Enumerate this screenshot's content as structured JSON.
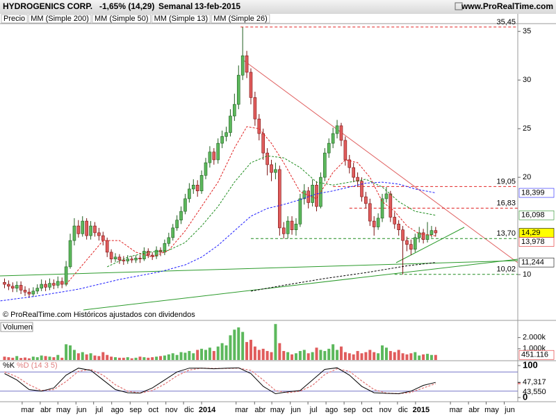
{
  "chart_data": {
    "type": "candlestick",
    "title": "HYDROGENICS CORP.",
    "change": "-1,65% (14,29)",
    "period": "Semanal",
    "date": "13-feb-2015",
    "source": "www.ProRealTime.com",
    "footnote": "© ProRealTime.com Históricos ajustados con dividendos",
    "xlim": [
      -49.1,
      77.0
    ],
    "xticks": [
      {
        "value": -43.7,
        "label": "mar"
      },
      {
        "value": -39.3,
        "label": "abr"
      },
      {
        "value": -35.0,
        "label": "may"
      },
      {
        "value": -30.6,
        "label": "jun"
      },
      {
        "value": -26.3,
        "label": "jul"
      },
      {
        "value": -21.9,
        "label": "ago"
      },
      {
        "value": -17.4,
        "label": "sep"
      },
      {
        "value": -13.1,
        "label": "oct"
      },
      {
        "value": -8.7,
        "label": "nov"
      },
      {
        "value": -4.4,
        "label": "dic"
      },
      {
        "value": 0,
        "label": "2014"
      },
      {
        "value": 8.4,
        "label": "mar"
      },
      {
        "value": 12.9,
        "label": "abr"
      },
      {
        "value": 17.1,
        "label": "may"
      },
      {
        "value": 21.6,
        "label": "jun"
      },
      {
        "value": 25.9,
        "label": "jul"
      },
      {
        "value": 30.3,
        "label": "ago"
      },
      {
        "value": 34.7,
        "label": "sep"
      },
      {
        "value": 39.0,
        "label": "oct"
      },
      {
        "value": 43.4,
        "label": "nov"
      },
      {
        "value": 47.7,
        "label": "dic"
      },
      {
        "value": 52.1,
        "label": "2015"
      },
      {
        "value": 60.6,
        "label": "mar"
      },
      {
        "value": 65.0,
        "label": "abr"
      },
      {
        "value": 69.3,
        "label": "may"
      },
      {
        "value": 73.7,
        "label": "jun"
      }
    ],
    "ylim": [
      5.36,
      35.8
    ],
    "yticks": [
      10,
      20,
      25,
      30,
      35
    ],
    "price": {
      "name": "Precio",
      "up_color": "#5cb85c",
      "down_color": "#e05c5c",
      "x": [
        -48,
        -47,
        -46,
        -45,
        -44,
        -43,
        -42,
        -41,
        -40,
        -39,
        -38,
        -37,
        -36,
        -35,
        -34,
        -33,
        -32,
        -31,
        -30,
        -29,
        -28,
        -27,
        -26,
        -25,
        -24,
        -23,
        -22,
        -21,
        -20,
        -19,
        -18,
        -17,
        -16,
        -15,
        -14,
        -13,
        -12,
        -11,
        -10,
        -9,
        -8,
        -7,
        -6,
        -5,
        -4,
        -3,
        -2,
        -1,
        0,
        1,
        2,
        3,
        4,
        5,
        6,
        7,
        8,
        9,
        10,
        11,
        12,
        13,
        14,
        15,
        16,
        17,
        18,
        19,
        20,
        21,
        22,
        23,
        24,
        25,
        26,
        27,
        28,
        29,
        30,
        31,
        32,
        33,
        34,
        35,
        36,
        37,
        38,
        39,
        40,
        41,
        42,
        43,
        44,
        45,
        46,
        47,
        48,
        49,
        50,
        51,
        52,
        53,
        54,
        55,
        56,
        57
      ],
      "open": [
        9.2,
        9.0,
        8.8,
        8.6,
        8.9,
        8.4,
        8.2,
        8.0,
        8.3,
        8.6,
        9.0,
        8.7,
        9.1,
        8.9,
        9.3,
        9.0,
        10.8,
        13.5,
        15.0,
        14.2,
        15.5,
        14.0,
        15.0,
        14.3,
        14.0,
        13.5,
        12.3,
        11.6,
        11.8,
        11.5,
        11.4,
        11.6,
        11.5,
        11.7,
        11.6,
        12.4,
        12.0,
        11.9,
        12.5,
        12.3,
        13.2,
        13.8,
        14.8,
        15.6,
        16.5,
        17.8,
        18.8,
        19.2,
        18.6,
        20.2,
        21.5,
        22.6,
        21.8,
        23.5,
        24.2,
        24.6,
        26.3,
        27.5,
        30.5,
        32.5,
        30.8,
        28.2,
        26.0,
        24.5,
        22.5,
        21.3,
        20.5,
        20.8,
        14.8,
        14.2,
        15.5,
        14.6,
        15.2,
        17.8,
        18.6,
        17.4,
        19.2,
        17.0,
        20.0,
        22.5,
        23.5,
        24.5,
        25.3,
        23.8,
        21.8,
        21.0,
        20.0,
        19.6,
        18.0,
        17.3,
        15.5,
        14.9,
        15.8,
        17.8,
        18.3,
        15.9,
        15.2,
        14.6,
        13.5,
        13.1,
        12.6,
        13.8,
        14.3,
        13.6,
        14.1,
        14.53
      ],
      "high": [
        9.6,
        9.4,
        9.2,
        9.3,
        9.3,
        8.8,
        8.6,
        8.7,
        9.0,
        9.5,
        9.4,
        9.6,
        9.5,
        9.8,
        9.7,
        11.4,
        14.2,
        15.8,
        15.6,
        16.0,
        15.8,
        15.5,
        15.4,
        14.8,
        14.4,
        13.8,
        12.6,
        12.2,
        12.1,
        11.9,
        12.0,
        11.9,
        12.0,
        12.0,
        12.8,
        12.7,
        12.3,
        12.9,
        12.8,
        13.6,
        14.3,
        15.2,
        16.1,
        17.0,
        18.3,
        19.4,
        19.8,
        19.7,
        20.7,
        22.0,
        23.2,
        23.0,
        24.0,
        24.8,
        25.2,
        27.0,
        28.6,
        31.5,
        35.45,
        33.0,
        31.2,
        28.8,
        26.5,
        25.0,
        23.0,
        21.8,
        21.5,
        21.2,
        15.4,
        16.0,
        16.0,
        15.8,
        18.3,
        19.3,
        19.0,
        19.8,
        19.6,
        20.5,
        23.0,
        24.0,
        25.1,
        25.9,
        25.6,
        24.2,
        22.3,
        21.5,
        20.5,
        20.0,
        18.5,
        17.8,
        16.0,
        16.3,
        18.3,
        19.0,
        18.6,
        16.4,
        15.6,
        15.0,
        13.9,
        13.6,
        14.2,
        14.9,
        14.7,
        15.4,
        15.0,
        14.9
      ],
      "low": [
        8.6,
        8.4,
        8.2,
        8.2,
        8.0,
        7.8,
        7.6,
        7.7,
        8.0,
        8.3,
        8.3,
        8.4,
        8.5,
        8.6,
        8.6,
        8.8,
        10.6,
        13.0,
        13.8,
        13.9,
        13.6,
        13.6,
        13.9,
        13.5,
        13.0,
        11.8,
        11.2,
        11.3,
        11.1,
        11.0,
        11.1,
        11.2,
        11.2,
        11.2,
        11.4,
        11.7,
        11.5,
        11.6,
        11.9,
        12.0,
        12.9,
        13.5,
        14.5,
        15.2,
        16.2,
        17.4,
        18.3,
        18.0,
        18.3,
        19.8,
        21.0,
        21.3,
        21.4,
        23.0,
        23.7,
        24.2,
        25.8,
        27.0,
        30.0,
        30.2,
        27.5,
        25.3,
        23.8,
        21.8,
        20.2,
        19.6,
        19.8,
        14.0,
        13.7,
        13.7,
        14.1,
        14.0,
        14.9,
        17.2,
        16.8,
        17.0,
        16.5,
        16.8,
        19.6,
        22.0,
        23.0,
        24.0,
        23.2,
        21.2,
        20.4,
        19.5,
        19.0,
        17.5,
        16.8,
        15.0,
        14.0,
        14.6,
        15.4,
        17.4,
        15.4,
        14.7,
        14.0,
        10.02,
        12.4,
        12.0,
        12.3,
        13.3,
        13.2,
        13.3,
        13.8,
        13.9
      ],
      "close": [
        9.0,
        8.8,
        8.6,
        8.9,
        8.4,
        8.2,
        8.0,
        8.3,
        8.6,
        9.0,
        8.7,
        9.1,
        8.9,
        9.3,
        9.0,
        10.8,
        13.5,
        15.0,
        14.2,
        15.5,
        14.0,
        15.0,
        14.3,
        14.0,
        13.5,
        12.3,
        11.6,
        11.8,
        11.5,
        11.4,
        11.6,
        11.5,
        11.7,
        11.6,
        12.4,
        12.0,
        11.9,
        12.5,
        12.3,
        13.2,
        13.8,
        14.8,
        15.6,
        16.5,
        17.8,
        18.8,
        19.2,
        18.6,
        20.2,
        21.5,
        22.6,
        21.8,
        23.5,
        24.2,
        24.6,
        26.3,
        27.5,
        30.5,
        32.5,
        30.8,
        28.2,
        26.0,
        24.5,
        22.5,
        21.3,
        20.5,
        20.8,
        14.8,
        14.2,
        15.5,
        14.6,
        15.2,
        17.8,
        18.6,
        17.4,
        19.2,
        17.0,
        20.0,
        22.5,
        23.5,
        24.5,
        25.3,
        23.8,
        21.8,
        21.0,
        20.0,
        19.6,
        18.0,
        17.3,
        15.5,
        14.9,
        15.8,
        17.8,
        18.3,
        15.9,
        15.2,
        14.6,
        13.5,
        13.1,
        12.6,
        13.8,
        14.3,
        13.6,
        14.1,
        14.53,
        14.29
      ]
    },
    "series": [
      {
        "name": "MM (Simple 200)",
        "color": "#000000",
        "x": [
          12,
          20,
          30,
          40,
          50,
          57
        ],
        "values": [
          8.3,
          8.9,
          9.6,
          10.2,
          10.9,
          11.244
        ]
      },
      {
        "name": "MM (Simple 50)",
        "color": "#1a1aff",
        "x": [
          -49,
          -40,
          -30,
          -20,
          -10,
          -4,
          0,
          4,
          8,
          12,
          16,
          20,
          24,
          28,
          32,
          36,
          40,
          44,
          48,
          52,
          57
        ],
        "values": [
          7.3,
          7.8,
          8.5,
          9.5,
          10.3,
          11.0,
          11.8,
          13.0,
          14.5,
          16.0,
          16.8,
          17.2,
          17.7,
          18.3,
          18.6,
          19.0,
          19.4,
          19.5,
          19.3,
          18.8,
          18.399
        ]
      },
      {
        "name": "MM (Simple 13)",
        "color": "#e02020",
        "x": [
          -33,
          -28,
          -24,
          -20,
          -16,
          -12,
          -8,
          -4,
          0,
          4,
          8,
          11,
          14,
          17,
          20,
          24,
          28,
          32,
          35,
          38,
          41,
          44,
          47,
          50,
          53,
          57
        ],
        "values": [
          9.0,
          11.5,
          13.5,
          13.5,
          12.3,
          11.8,
          12.5,
          14.5,
          17.0,
          19.5,
          23.0,
          25.2,
          25.0,
          23.5,
          21.5,
          18.5,
          17.8,
          20.5,
          21.8,
          21.5,
          20.0,
          17.5,
          16.5,
          15.0,
          14.2,
          13.978
        ]
      },
      {
        "name": "MM (Simple 26)",
        "color": "#1e8c1e",
        "x": [
          -23,
          -18,
          -13,
          -8,
          -4,
          0,
          4,
          8,
          12,
          16,
          20,
          24,
          28,
          32,
          36,
          40,
          44,
          48,
          52,
          57
        ],
        "values": [
          10.8,
          11.8,
          12.3,
          12.5,
          13.3,
          15.0,
          17.0,
          19.5,
          21.5,
          22.2,
          22.0,
          21.0,
          19.5,
          19.2,
          19.5,
          19.8,
          19.0,
          17.5,
          16.5,
          16.098
        ]
      }
    ],
    "levels": [
      {
        "value": 35.45,
        "label": "35,45",
        "x": 9.5,
        "color": "#e02020"
      },
      {
        "value": 19.05,
        "label": "19,05",
        "x": 32,
        "color": "#e02020"
      },
      {
        "value": 16.83,
        "label": "16,83",
        "x": 36,
        "color": "#e02020"
      },
      {
        "value": 13.7,
        "label": "13,70",
        "x": 12,
        "color": "#1e8c1e"
      },
      {
        "value": 10.02,
        "label": "10,02",
        "x": 47,
        "color": "#1e8c1e"
      }
    ],
    "last_values": [
      {
        "value": 18.399,
        "label": "18,399",
        "color": "#1a1aff"
      },
      {
        "value": 16.098,
        "label": "16,098",
        "color": "#1e8c1e"
      },
      {
        "value": 14.29,
        "label": "14,29",
        "color": "#000000",
        "background": "#ffff00"
      },
      {
        "value": 13.978,
        "label": "13,978",
        "color": "#e02020"
      },
      {
        "value": 11.244,
        "label": "11,244",
        "color": "#000000"
      }
    ],
    "volume": {
      "title": "Volumen",
      "ylim": [
        0,
        3400
      ],
      "yticks": [
        {
          "value": 1000,
          "label": "1.000k"
        },
        {
          "value": 2000,
          "label": "2.000k"
        }
      ],
      "last": 451.116,
      "values": [
        300,
        250,
        200,
        350,
        180,
        220,
        150,
        300,
        250,
        400,
        350,
        300,
        250,
        450,
        200,
        1400,
        1300,
        900,
        600,
        700,
        500,
        600,
        400,
        350,
        700,
        450,
        300,
        250,
        200,
        200,
        250,
        150,
        200,
        300,
        250,
        200,
        250,
        300,
        350,
        400,
        500,
        600,
        450,
        700,
        650,
        800,
        600,
        900,
        1000,
        900,
        1100,
        800,
        1200,
        1500,
        1300,
        2200,
        2700,
        2900,
        2500,
        1600,
        1800,
        1200,
        900,
        1000,
        800,
        700,
        3200,
        1500,
        800,
        700,
        500,
        600,
        800,
        900,
        600,
        700,
        1100,
        900,
        800,
        1000,
        1400,
        900,
        1200,
        700,
        600,
        500,
        800,
        600,
        700,
        900,
        700,
        600,
        1300,
        1100,
        800,
        700,
        900,
        600,
        500,
        600,
        700,
        400,
        500,
        550,
        450,
        451.116
      ]
    },
    "stochastic": {
      "k_name": "%K",
      "d_name": "%D (14 3 5)",
      "ylim": [
        0,
        100
      ],
      "yticks": [
        0,
        100
      ],
      "bands": [
        20,
        80
      ],
      "x": [
        -48,
        -45,
        -42,
        -39,
        -36,
        -33,
        -30,
        -27,
        -24,
        -21,
        -18,
        -15,
        -12,
        -9,
        -6,
        -3,
        0,
        3,
        6,
        9,
        12,
        15,
        18,
        21,
        24,
        27,
        30,
        33,
        36,
        39,
        42,
        45,
        48,
        51,
        54,
        57
      ],
      "k": [
        75,
        55,
        25,
        20,
        30,
        70,
        92,
        85,
        55,
        25,
        15,
        14,
        30,
        55,
        80,
        92,
        92,
        90,
        92,
        93,
        75,
        35,
        12,
        18,
        22,
        55,
        88,
        93,
        70,
        35,
        15,
        13,
        12,
        20,
        38,
        47.317
      ],
      "d": [
        80,
        65,
        40,
        22,
        25,
        50,
        82,
        88,
        70,
        40,
        20,
        14,
        22,
        42,
        68,
        86,
        92,
        91,
        91,
        92,
        85,
        55,
        22,
        15,
        20,
        38,
        72,
        90,
        82,
        52,
        25,
        14,
        12,
        16,
        30,
        43.55
      ],
      "k_last": {
        "value": 47.317,
        "label": "47,317"
      },
      "d_last": {
        "value": 43.55,
        "label": "43,550"
      }
    }
  }
}
